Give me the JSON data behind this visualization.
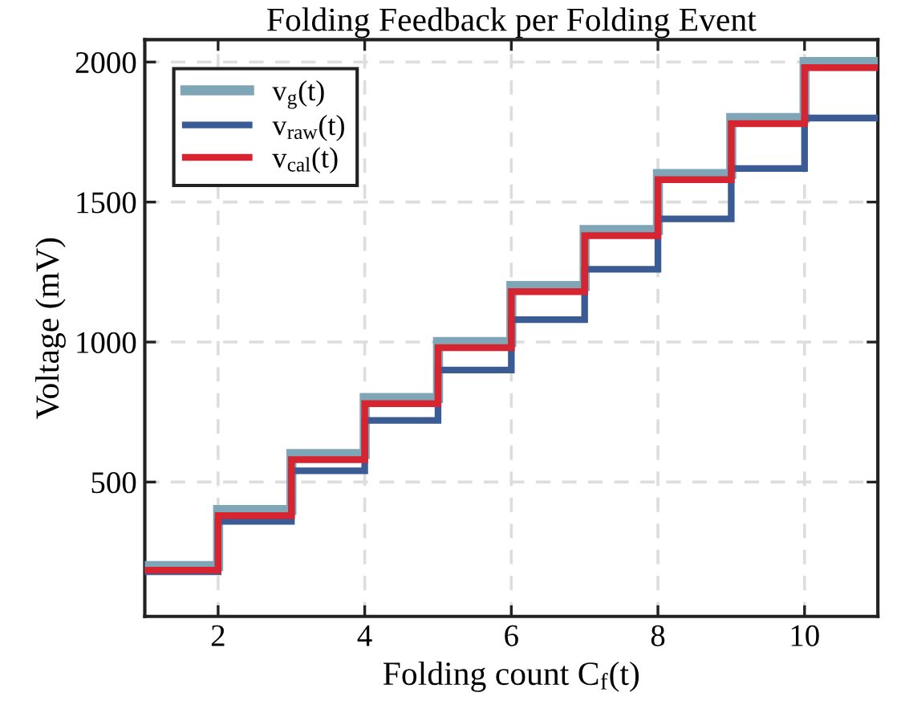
{
  "chart_data": {
    "type": "step",
    "title": "Folding Feedback per Folding Event",
    "xlabel": "Folding count C$_{f}$(t)",
    "ylabel": "Voltage (mV)",
    "x": [
      1,
      2,
      3,
      4,
      5,
      6,
      7,
      8,
      9,
      10,
      11
    ],
    "series": [
      {
        "name": "v$_{g}$(t)",
        "color": "#7fa6b7",
        "values": [
          200,
          400,
          600,
          800,
          1000,
          1200,
          1400,
          1600,
          1800,
          2000,
          2000
        ]
      },
      {
        "name": "v$_{raw}$(t)",
        "color": "#3a5b94",
        "values": [
          180,
          360,
          540,
          720,
          900,
          1080,
          1260,
          1440,
          1620,
          1800,
          1800
        ]
      },
      {
        "name": "v$_{cal}$(t)",
        "color": "#d62530",
        "values": [
          185,
          380,
          580,
          780,
          980,
          1180,
          1380,
          1580,
          1780,
          1980,
          1980
        ]
      }
    ],
    "xlim": [
      1,
      11
    ],
    "ylim": [
      20,
      2080
    ],
    "xticks": [
      2,
      4,
      6,
      8,
      10
    ],
    "yticks": [
      500,
      1000,
      1500,
      2000
    ],
    "grid": true,
    "legend": "top left",
    "line_style": "solid",
    "marker": "none"
  }
}
